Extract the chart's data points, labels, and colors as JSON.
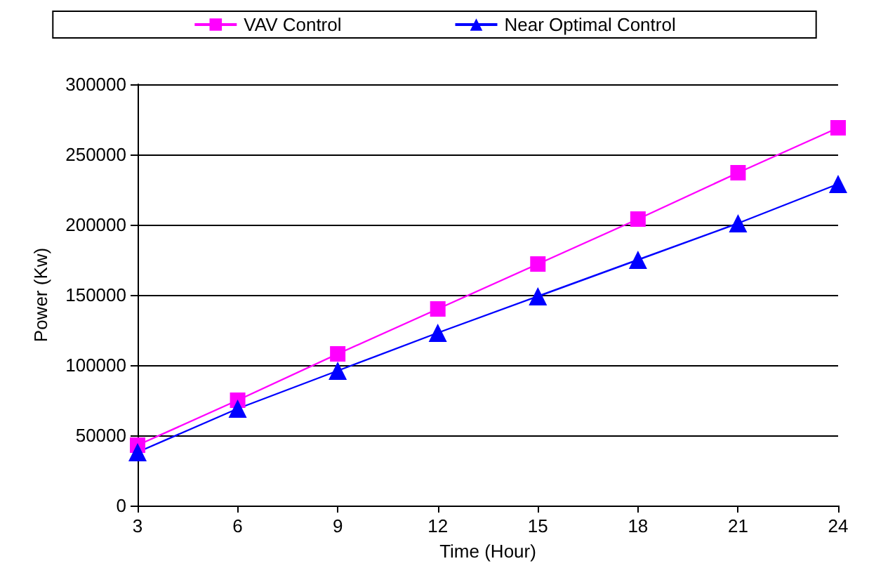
{
  "chart_data": {
    "type": "line",
    "xlabel": "Time (Hour)",
    "ylabel": "Power (Kw)",
    "x": [
      3,
      6,
      9,
      12,
      15,
      18,
      21,
      24
    ],
    "series": [
      {
        "name": "VAV Control",
        "color": "#ff00ff",
        "marker": "square",
        "values": [
          43000,
          75000,
          108000,
          140000,
          172000,
          204000,
          237000,
          269000
        ]
      },
      {
        "name": "Near Optimal Control",
        "color": "#0000ff",
        "marker": "triangle",
        "values": [
          38000,
          69000,
          96000,
          123000,
          149000,
          175000,
          201000,
          229000
        ]
      }
    ],
    "xlim": [
      3,
      24
    ],
    "xticks": [
      3,
      6,
      9,
      12,
      15,
      18,
      21,
      24
    ],
    "ylim": [
      0,
      300000
    ],
    "yticks": [
      0,
      50000,
      100000,
      150000,
      200000,
      250000,
      300000
    ],
    "grid": "y",
    "legend": "top"
  }
}
